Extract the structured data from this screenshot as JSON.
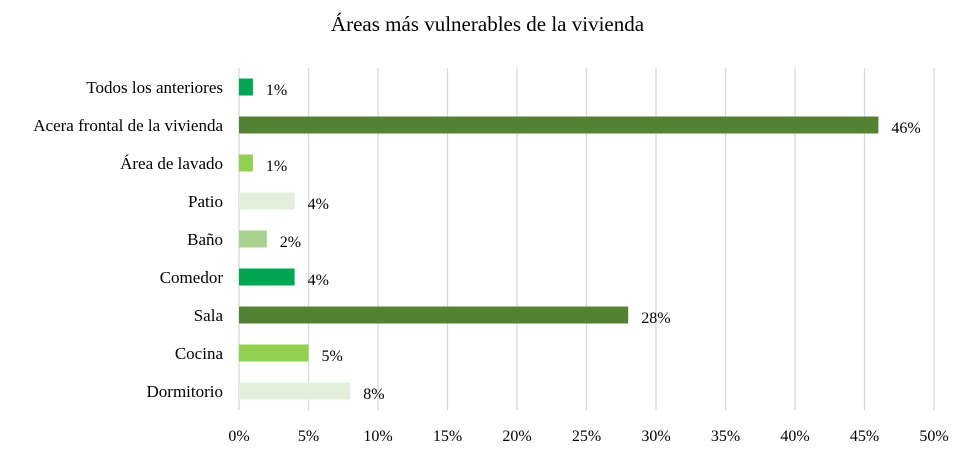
{
  "chart_data": {
    "type": "bar",
    "orientation": "horizontal",
    "title": "Áreas más vulnerables de la vivienda",
    "xlabel": "",
    "ylabel": "",
    "xlim": [
      0,
      50
    ],
    "x_ticks": [
      0,
      5,
      10,
      15,
      20,
      25,
      30,
      35,
      40,
      45,
      50
    ],
    "x_tick_labels": [
      "0%",
      "5%",
      "10%",
      "15%",
      "20%",
      "25%",
      "30%",
      "35%",
      "40%",
      "45%",
      "50%"
    ],
    "grid": "vertical",
    "legend": "none",
    "categories": [
      "Todos los anteriores",
      "Acera frontal de la vivienda",
      "Área de lavado",
      "Patio",
      "Baño",
      "Comedor",
      "Sala",
      "Cocina",
      "Dormitorio"
    ],
    "values": [
      1,
      46,
      1,
      4,
      2,
      4,
      28,
      5,
      8
    ],
    "value_labels": [
      "1%",
      "46%",
      "1%",
      "4%",
      "2%",
      "4%",
      "28%",
      "5%",
      "8%"
    ],
    "colors": [
      "#00a651",
      "#548235",
      "#92d050",
      "#e2efda",
      "#a9d18e",
      "#00a651",
      "#548235",
      "#92d050",
      "#e2efda"
    ]
  }
}
